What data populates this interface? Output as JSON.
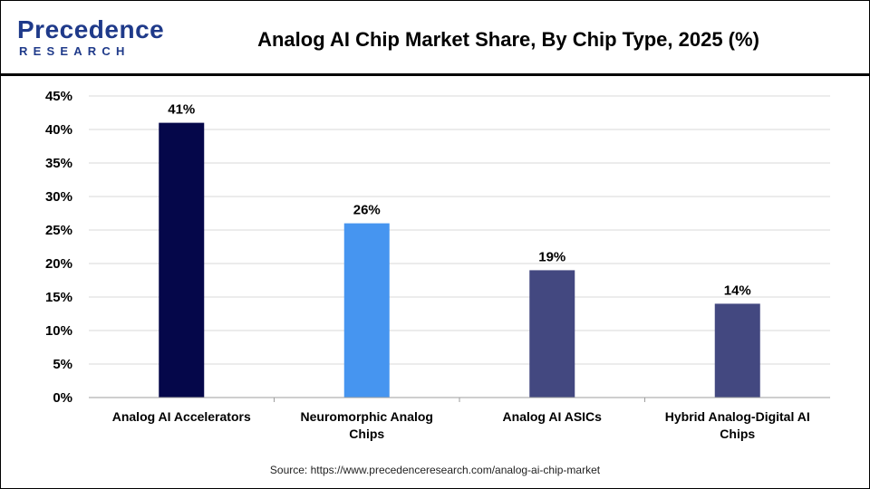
{
  "header": {
    "logo_top": "Precedence",
    "logo_bottom": "RESEARCH",
    "title": "Analog AI Chip Market Share, By Chip Type, 2025 (%)"
  },
  "footer": {
    "source": "Source: https://www.precedenceresearch.com/analog-ai-chip-market"
  },
  "colors": {
    "brand": "#1f3a8a",
    "gridline": "#d9d9d9",
    "axis": "#9e9e9e"
  },
  "chart_data": {
    "type": "bar",
    "categories": [
      [
        "Analog AI Accelerators"
      ],
      [
        "Neuromorphic Analog",
        "Chips"
      ],
      [
        "Analog AI ASICs"
      ],
      [
        "Hybrid Analog-Digital AI",
        "Chips"
      ]
    ],
    "values": [
      41,
      26,
      19,
      14
    ],
    "data_labels": [
      "41%",
      "26%",
      "19%",
      "14%"
    ],
    "bar_colors": [
      "#05074a",
      "#4695f0",
      "#434880",
      "#434880"
    ],
    "ylim": [
      0,
      45
    ],
    "yticks": [
      0,
      5,
      10,
      15,
      20,
      25,
      30,
      35,
      40,
      45
    ],
    "ytick_labels": [
      "0%",
      "5%",
      "10%",
      "15%",
      "20%",
      "25%",
      "30%",
      "35%",
      "40%",
      "45%"
    ],
    "grid": true,
    "legend": "none"
  }
}
